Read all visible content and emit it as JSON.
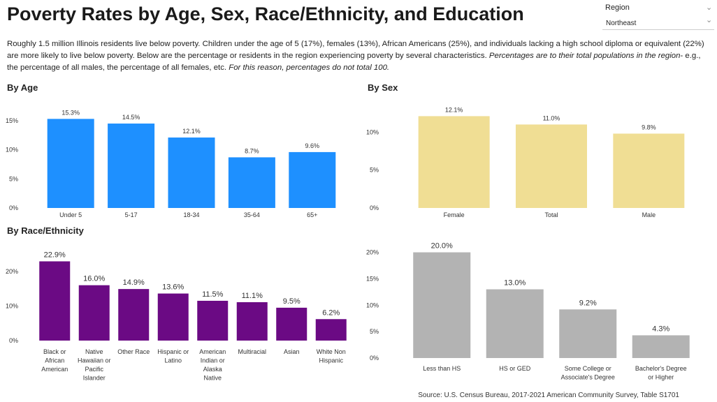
{
  "title": "Poverty Rates by Age, Sex, Race/Ethnicity, and Education",
  "filter": {
    "label": "Region",
    "selected": "Northeast"
  },
  "intro": {
    "plain": "Roughly 1.5 million Illinois residents live below poverty. Children under the age of 5 (17%), females (13%), African Americans (25%), and individuals lacking a high school diploma or equivalent (22%) are more likely to live below poverty.  Below are the percentage or residents in the region experiencing poverty by several characteristics. ",
    "italic1": "Percentages are to their total populations in the region",
    "mid": "- e.g., the percentage of all males, the percentage of all females, etc.  ",
    "italic2": "For this reason, percentages do not total 100."
  },
  "source": "Source: U.S. Census Bureau, 2017-2021 American Community Survey, Table S1701",
  "chart_data": [
    {
      "type": "bar",
      "title": "By Age",
      "categories": [
        "Under 5",
        "5-17",
        "18-34",
        "35-64",
        "65+"
      ],
      "values": [
        15.3,
        14.5,
        12.1,
        8.7,
        9.6
      ],
      "value_labels": [
        "15.3%",
        "14.5%",
        "12.1%",
        "8.7%",
        "9.6%"
      ],
      "y_ticks": [
        "0%",
        "5%",
        "10%",
        "15%"
      ],
      "ylim": [
        0,
        17.5
      ],
      "color": "#1e90ff",
      "grid": false
    },
    {
      "type": "bar",
      "title": "By Sex",
      "categories": [
        "Female",
        "Total",
        "Male"
      ],
      "values": [
        12.1,
        11.0,
        9.8
      ],
      "value_labels": [
        "12.1%",
        "11.0%",
        "9.8%"
      ],
      "y_ticks": [
        "0%",
        "5%",
        "10%"
      ],
      "ylim": [
        0,
        12.6
      ],
      "color": "#f0de94",
      "grid": false
    },
    {
      "type": "bar",
      "title": "By Race/Ethnicity",
      "categories": [
        "Black or African American",
        "Native Hawaiian or Pacific Islander",
        "Other Race",
        "Hispanic or Latino",
        "American Indian or Alaska Native",
        "Multiracial",
        "Asian",
        "White Non Hispanic"
      ],
      "values": [
        22.9,
        16.0,
        14.9,
        13.6,
        11.5,
        11.1,
        9.5,
        6.2
      ],
      "value_labels": [
        "22.9%",
        "16.0%",
        "14.9%",
        "13.6%",
        "11.5%",
        "11.1%",
        "9.5%",
        "6.2%"
      ],
      "y_ticks": [
        "0%",
        "10%",
        "20%"
      ],
      "ylim": [
        0,
        23.8
      ],
      "color": "#6b0a84",
      "grid": false
    },
    {
      "type": "bar",
      "title": "",
      "categories": [
        "Less than HS",
        "HS or GED",
        "Some College or Associate's Degree",
        "Bachelor's Degree or Higher"
      ],
      "values": [
        20.0,
        13.0,
        9.2,
        4.3
      ],
      "value_labels": [
        "20.0%",
        "13.0%",
        "9.2%",
        "4.3%"
      ],
      "y_ticks": [
        "0%",
        "5%",
        "10%",
        "15%",
        "20%"
      ],
      "ylim": [
        0,
        20.6
      ],
      "color": "#b3b3b3",
      "grid": false
    }
  ]
}
